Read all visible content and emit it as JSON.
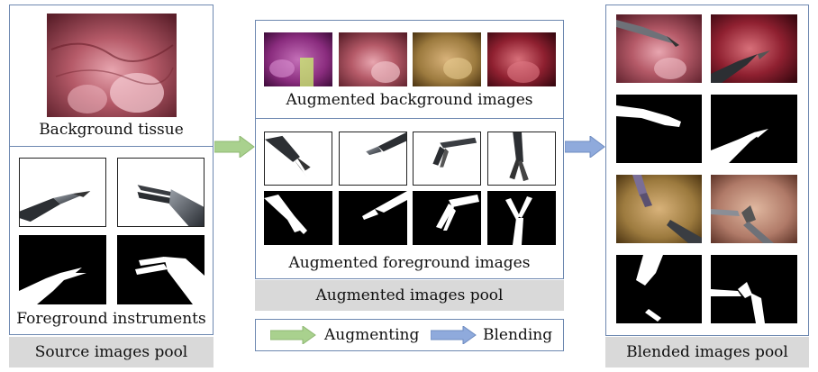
{
  "source": {
    "background_label": "Background tissue",
    "foreground_label": "Foreground instruments",
    "pool_label": "Source images pool"
  },
  "augmented": {
    "background_label": "Augmented background images",
    "foreground_label": "Augmented foreground images",
    "pool_label": "Augmented images pool"
  },
  "blended": {
    "pool_label": "Blended images pool"
  },
  "legend": {
    "augmenting_label": "Augmenting",
    "blending_label": "Blending"
  },
  "colors": {
    "box_border": "#6d88b0",
    "pool_fill": "#d9d9d9",
    "augment_arrow": "#a9d18e",
    "blend_arrow": "#8faadc"
  }
}
